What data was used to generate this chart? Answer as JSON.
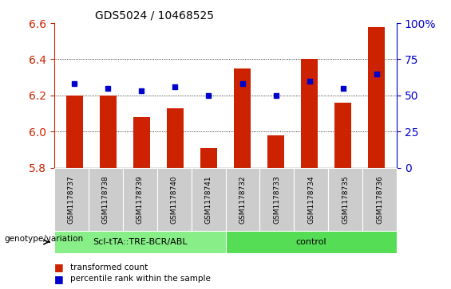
{
  "title": "GDS5024 / 10468525",
  "samples": [
    "GSM1178737",
    "GSM1178738",
    "GSM1178739",
    "GSM1178740",
    "GSM1178741",
    "GSM1178732",
    "GSM1178733",
    "GSM1178734",
    "GSM1178735",
    "GSM1178736"
  ],
  "red_values": [
    6.2,
    6.2,
    6.08,
    6.13,
    5.91,
    6.35,
    5.98,
    6.4,
    6.16,
    6.58
  ],
  "blue_values": [
    58,
    55,
    53,
    56,
    50,
    58,
    50,
    60,
    55,
    65
  ],
  "ylim_left": [
    5.8,
    6.6
  ],
  "ylim_right": [
    0,
    100
  ],
  "yticks_left": [
    5.8,
    6.0,
    6.2,
    6.4,
    6.6
  ],
  "yticks_right": [
    0,
    25,
    50,
    75,
    100
  ],
  "group1_label": "ScI-tTA::TRE-BCR/ABL",
  "group2_label": "control",
  "bar_color": "#cc2200",
  "dot_color": "#0000cc",
  "group1_bg": "#88ee88",
  "group2_bg": "#55dd55",
  "sample_bg": "#cccccc",
  "legend_bar_label": "transformed count",
  "legend_dot_label": "percentile rank within the sample",
  "genotype_label": "genotype/variation",
  "bar_width": 0.5,
  "base_value": 5.8,
  "grid_lines": [
    6.0,
    6.2,
    6.4
  ]
}
